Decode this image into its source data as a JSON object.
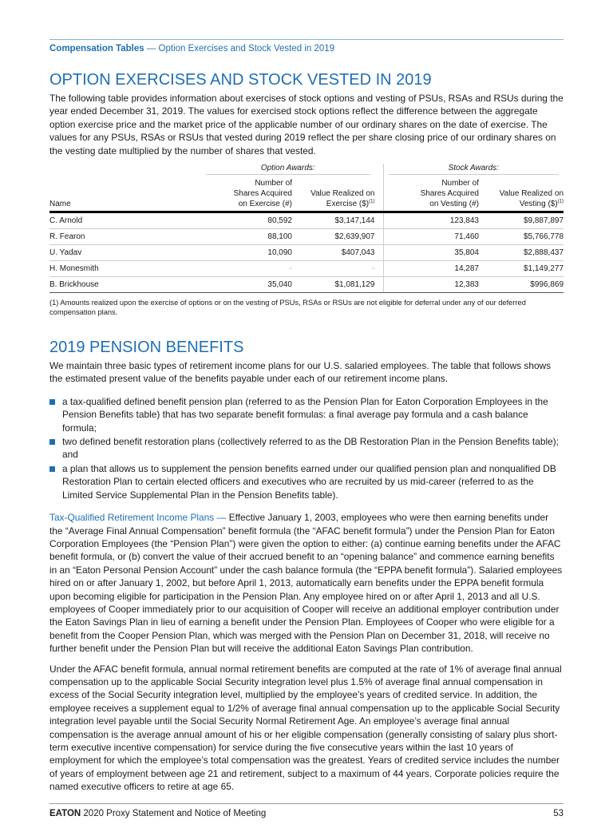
{
  "header": {
    "section": "Compensation Tables",
    "separator": " — ",
    "subtitle": "Option Exercises and Stock Vested in 2019"
  },
  "title1": "OPTION EXERCISES AND STOCK VESTED IN 2019",
  "intro": "The following table provides information about exercises of stock options and vesting of PSUs, RSAs and RSUs during the year ended December 31, 2019. The values for exercised stock options reflect the difference between the aggregate option exercise price and the market price of the applicable number of our ordinary shares on the date of exercise. The values for any PSUs, RSAs or RSUs that vested during 2019 reflect the per share closing price of our ordinary shares on the vesting date multiplied by the number of shares that vested.",
  "table": {
    "groups": [
      "Option Awards:",
      "Stock Awards:"
    ],
    "columns": [
      "Name",
      "Number of Shares Acquired on Exercise (#)",
      "Value Realized on Exercise ($)",
      "Number of Shares Acquired on Vesting (#)",
      "Value Realized on Vesting ($)"
    ],
    "footnote_mark": "(1)",
    "rows": [
      [
        "C. Arnold",
        "80,592",
        "$3,147,144",
        "123,843",
        "$9,887,897"
      ],
      [
        "R. Fearon",
        "88,100",
        "$2,639,907",
        "71,460",
        "$5,766,778"
      ],
      [
        "U. Yadav",
        "10,090",
        "$407,043",
        "35,804",
        "$2,888,437"
      ],
      [
        "H. Monesmith",
        "-",
        "-",
        "14,287",
        "$1,149,277"
      ],
      [
        "B. Brickhouse",
        "35,040",
        "$1,081,129",
        "12,383",
        "$996,869"
      ]
    ]
  },
  "footnote": "(1) Amounts realized upon the exercise of options or on the vesting of PSUs, RSAs or RSUs are not eligible for deferral under any of our deferred compensation plans.",
  "title2": "2019 PENSION BENEFITS",
  "pension_intro": "We maintain three basic types of retirement income plans for our U.S. salaried employees. The table that follows shows the estimated present value of the benefits payable under each of our retirement income plans.",
  "bullets": [
    "a tax-qualified defined benefit pension plan (referred to as the Pension Plan for Eaton Corporation Employees in the Pension Benefits table) that has two separate benefit formulas: a final average pay formula and a cash balance formula;",
    "two defined benefit restoration plans (collectively referred to as the DB Restoration Plan in the Pension Benefits table); and",
    "a plan that allows us to supplement the pension benefits earned under our qualified pension plan and nonqualified DB Restoration Plan to certain elected officers and executives who are recruited by us mid-career (referred to as the Limited Service Supplemental Plan in the Pension Benefits table)."
  ],
  "taxq_heading": "Tax-Qualified Retirement Income Plans — ",
  "taxq_body": "Effective January 1, 2003, employees who were then earning benefits under the “Average Final Annual Compensation” benefit formula (the “AFAC benefit formula”) under the Pension Plan for Eaton Corporation Employees (the “Pension Plan”) were given the option to either: (a) continue earning benefits under the AFAC benefit formula, or (b) convert the value of their accrued benefit to an “opening balance” and commence earning benefits in an “Eaton Personal Pension Account” under the cash balance formula (the “EPPA benefit formula”). Salaried employees hired on or after January 1, 2002, but before April 1, 2013, automatically earn benefits under the EPPA benefit formula upon becoming eligible for participation in the Pension Plan. Any employee hired on or after April 1, 2013 and all U.S. employees of Cooper immediately prior to our acquisition of Cooper will receive an additional employer contribution under the Eaton Savings Plan in lieu of earning a benefit under the Pension Plan. Employees of Cooper who were eligible for a benefit from the Cooper Pension Plan, which was merged with the Pension Plan on December 31, 2018, will receive no further benefit under the Pension Plan but will receive the additional Eaton Savings Plan contribution.",
  "afac": "Under the AFAC benefit formula, annual normal retirement benefits are computed at the rate of 1% of average final annual compensation up to the applicable Social Security integration level plus 1.5% of average final annual compensation in excess of the Social Security integration level, multiplied by the employee’s years of credited service. In addition, the employee receives a supplement equal to 1/2% of average final annual compensation up to the applicable Social Security integration level payable until the Social Security Normal Retirement Age. An employee’s average final annual compensation is the average annual amount of his or her eligible compensation (generally consisting of salary plus short-term executive incentive compensation) for service during the five consecutive years within the last 10 years of employment for which the employee’s total compensation was the greatest. Years of credited service includes the number of years of employment between age 21 and retirement, subject to a maximum of 44 years. Corporate policies require the named executive officers to retire at age 65.",
  "footer": {
    "brand": "EATON",
    "text": " 2020 Proxy Statement and Notice of Meeting",
    "page": "53"
  },
  "colors": {
    "accent": "#1f6fb2"
  }
}
